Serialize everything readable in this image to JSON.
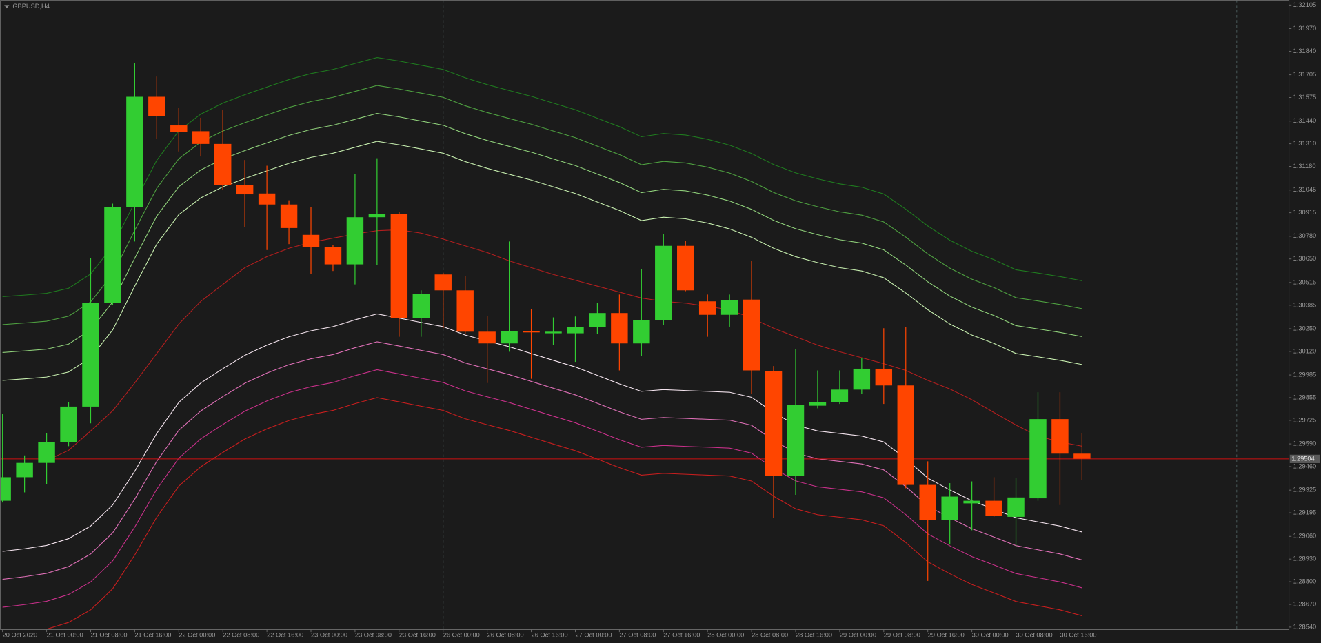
{
  "chart_data": {
    "type": "candlestick",
    "title": "GBPUSD,H4",
    "categories": [
      "20 Oct 2020",
      null,
      "21 Oct 00:00",
      null,
      "21 Oct 08:00",
      null,
      "21 Oct 16:00",
      null,
      "22 Oct 00:00",
      null,
      "22 Oct 08:00",
      null,
      "22 Oct 16:00",
      null,
      "23 Oct 00:00",
      null,
      "23 Oct 08:00",
      null,
      "23 Oct 16:00",
      null,
      "26 Oct 00:00",
      null,
      "26 Oct 08:00",
      null,
      "26 Oct 16:00",
      null,
      "27 Oct 00:00",
      null,
      "27 Oct 08:00",
      null,
      "27 Oct 16:00",
      null,
      "28 Oct 00:00",
      null,
      "28 Oct 08:00",
      null,
      "28 Oct 16:00",
      null,
      "29 Oct 00:00",
      null,
      "29 Oct 08:00",
      null,
      "29 Oct 16:00",
      null,
      "30 Oct 00:00",
      null,
      "30 Oct 08:00",
      null,
      "30 Oct 16:00",
      null
    ],
    "open": [
      1.29264,
      1.29399,
      1.29481,
      1.29601,
      1.29804,
      1.30397,
      1.30947,
      1.31579,
      1.31415,
      1.31382,
      1.31309,
      1.31073,
      1.31025,
      1.30962,
      1.30788,
      1.30716,
      1.30619,
      1.30889,
      1.30909,
      1.30311,
      1.30561,
      1.3047,
      1.30233,
      1.30166,
      1.30238,
      1.30224,
      1.30224,
      1.30258,
      1.3034,
      1.30166,
      1.30301,
      1.30725,
      1.30407,
      1.3033,
      1.30417,
      1.30007,
      1.29408,
      1.29809,
      1.29828,
      1.29901,
      1.30021,
      1.29925,
      1.29355,
      1.29153,
      1.29249,
      1.29264,
      1.29172,
      1.29278,
      1.29732,
      1.29534
    ],
    "high": [
      1.29761,
      1.29524,
      1.2965,
      1.29828,
      1.30653,
      1.30967,
      1.31772,
      1.31695,
      1.31517,
      1.31459,
      1.31502,
      1.31217,
      1.31184,
      1.30986,
      1.30947,
      1.3073,
      1.31135,
      1.31227,
      1.30918,
      1.3047,
      1.30571,
      1.30552,
      1.30325,
      1.3075,
      1.30364,
      1.30315,
      1.3032,
      1.30397,
      1.30446,
      1.3059,
      1.30793,
      1.30754,
      1.30446,
      1.30446,
      1.30639,
      1.30036,
      1.30132,
      1.30011,
      1.30011,
      1.30084,
      1.30253,
      1.30262,
      1.2949,
      1.29365,
      1.29375,
      1.29399,
      1.29394,
      1.29886,
      1.29886,
      1.2965
    ],
    "low": [
      1.29254,
      1.29312,
      1.2936,
      1.29577,
      1.29708,
      1.30388,
      1.3075,
      1.31338,
      1.31266,
      1.31237,
      1.31044,
      1.30832,
      1.30701,
      1.30735,
      1.30566,
      1.30581,
      1.30504,
      1.30614,
      1.30204,
      1.30204,
      1.30253,
      1.30219,
      1.29939,
      1.30118,
      1.29963,
      1.30156,
      1.3006,
      1.30219,
      1.30011,
      1.30093,
      1.30272,
      1.30465,
      1.30204,
      1.30262,
      1.29876,
      1.29167,
      1.29298,
      1.29794,
      1.29819,
      1.29876,
      1.29819,
      1.29336,
      1.28805,
      1.29013,
      1.29095,
      1.29172,
      1.28998,
      1.29264,
      1.2924,
      1.29384
    ],
    "close": [
      1.29399,
      1.29481,
      1.29601,
      1.29804,
      1.30397,
      1.30947,
      1.31579,
      1.31468,
      1.31377,
      1.31309,
      1.31073,
      1.3102,
      1.30962,
      1.30827,
      1.30716,
      1.30619,
      1.30889,
      1.30909,
      1.30311,
      1.3045,
      1.3047,
      1.30233,
      1.30166,
      1.30238,
      1.30229,
      1.30233,
      1.30258,
      1.3034,
      1.30166,
      1.30301,
      1.30725,
      1.3047,
      1.3033,
      1.30412,
      1.30011,
      1.29408,
      1.29814,
      1.29828,
      1.29901,
      1.30021,
      1.29925,
      1.29355,
      1.29153,
      1.29288,
      1.29264,
      1.29177,
      1.29283,
      1.29732,
      1.29534,
      1.29505
    ],
    "up_color": "#32cd32",
    "down_color": "#ff4500",
    "lines": [
      {
        "color": "#c8f0b0",
        "values": [
          1.29954,
          1.29963,
          1.29973,
          1.30002,
          1.30084,
          1.30243,
          1.30494,
          1.30735,
          1.30904,
          1.31,
          1.31063,
          1.31111,
          1.31155,
          1.31198,
          1.31232,
          1.31256,
          1.3129,
          1.31324,
          1.31304,
          1.3128,
          1.31256,
          1.31208,
          1.31169,
          1.31135,
          1.31102,
          1.31063,
          1.31025,
          1.30976,
          1.30928,
          1.3087,
          1.30889,
          1.3088,
          1.30856,
          1.30822,
          1.30774,
          1.30711,
          1.30663,
          1.30629,
          1.306,
          1.30581,
          1.30542,
          1.30455,
          1.30359,
          1.30277,
          1.30214,
          1.30166,
          1.30108,
          1.30089,
          1.30069,
          1.30045
        ]
      },
      {
        "color": "#8fd07a",
        "values": [
          1.30114,
          1.30123,
          1.30133,
          1.30162,
          1.30244,
          1.30403,
          1.30654,
          1.30895,
          1.31064,
          1.3116,
          1.31223,
          1.31271,
          1.31315,
          1.31358,
          1.31392,
          1.31416,
          1.3145,
          1.31484,
          1.31464,
          1.3144,
          1.31416,
          1.31368,
          1.31329,
          1.31295,
          1.31262,
          1.31223,
          1.31185,
          1.31136,
          1.31088,
          1.3103,
          1.31049,
          1.3104,
          1.31016,
          1.30982,
          1.30934,
          1.30871,
          1.30823,
          1.30789,
          1.3076,
          1.30741,
          1.30702,
          1.30615,
          1.30519,
          1.30437,
          1.30374,
          1.30326,
          1.30268,
          1.30249,
          1.30229,
          1.30205
        ]
      },
      {
        "color": "#4ea040",
        "values": [
          1.30274,
          1.30283,
          1.30293,
          1.30322,
          1.30404,
          1.30563,
          1.30814,
          1.31055,
          1.31224,
          1.3132,
          1.31383,
          1.31431,
          1.31475,
          1.31518,
          1.31552,
          1.31576,
          1.3161,
          1.31644,
          1.31624,
          1.316,
          1.31576,
          1.31528,
          1.31489,
          1.31455,
          1.31422,
          1.31383,
          1.31345,
          1.31296,
          1.31248,
          1.3119,
          1.31209,
          1.312,
          1.31176,
          1.31142,
          1.31094,
          1.31031,
          1.30983,
          1.30949,
          1.3092,
          1.30901,
          1.30862,
          1.30775,
          1.30679,
          1.30597,
          1.30534,
          1.30486,
          1.30428,
          1.30409,
          1.30389,
          1.30365
        ]
      },
      {
        "color": "#1f7a1f",
        "values": [
          1.30434,
          1.30443,
          1.30453,
          1.30482,
          1.30564,
          1.30723,
          1.30974,
          1.31215,
          1.31384,
          1.3148,
          1.31543,
          1.31591,
          1.31635,
          1.31678,
          1.31712,
          1.31736,
          1.3177,
          1.31804,
          1.31784,
          1.3176,
          1.31736,
          1.31688,
          1.31649,
          1.31615,
          1.31582,
          1.31543,
          1.31505,
          1.31456,
          1.31408,
          1.3135,
          1.31369,
          1.3136,
          1.31336,
          1.31302,
          1.31254,
          1.31191,
          1.31143,
          1.31109,
          1.3108,
          1.31061,
          1.31022,
          1.30935,
          1.30839,
          1.30757,
          1.30694,
          1.30646,
          1.30588,
          1.30569,
          1.30549,
          1.30525
        ]
      },
      {
        "color": "#f4e4ee",
        "values": [
          1.28974,
          1.28989,
          1.29008,
          1.29047,
          1.29119,
          1.2924,
          1.29433,
          1.2965,
          1.29828,
          1.29939,
          1.30021,
          1.30098,
          1.30156,
          1.30204,
          1.30238,
          1.30262,
          1.30301,
          1.30335,
          1.30311,
          1.30286,
          1.30262,
          1.30214,
          1.3018,
          1.30147,
          1.30108,
          1.30069,
          1.30031,
          1.29983,
          1.29934,
          1.29891,
          1.29901,
          1.29896,
          1.29891,
          1.29886,
          1.29857,
          1.2977,
          1.29698,
          1.29664,
          1.2965,
          1.29635,
          1.29601,
          1.29505,
          1.29394,
          1.29326,
          1.29264,
          1.29216,
          1.29167,
          1.29143,
          1.29119,
          1.29085
        ]
      },
      {
        "color": "#e070b8",
        "values": [
          1.28814,
          1.28829,
          1.28848,
          1.28887,
          1.28959,
          1.2908,
          1.29273,
          1.2949,
          1.29668,
          1.29779,
          1.29861,
          1.29938,
          1.29996,
          1.30044,
          1.30078,
          1.30102,
          1.30141,
          1.30175,
          1.30151,
          1.30126,
          1.30102,
          1.30054,
          1.3002,
          1.29987,
          1.29948,
          1.29909,
          1.29871,
          1.29823,
          1.29774,
          1.29731,
          1.29741,
          1.29736,
          1.29731,
          1.29726,
          1.29697,
          1.2961,
          1.29538,
          1.29504,
          1.2949,
          1.29475,
          1.29441,
          1.29345,
          1.29234,
          1.29166,
          1.29104,
          1.29056,
          1.29007,
          1.28983,
          1.28959,
          1.28925
        ]
      },
      {
        "color": "#c8308a",
        "values": [
          1.28654,
          1.28669,
          1.28688,
          1.28727,
          1.28799,
          1.2892,
          1.29113,
          1.2933,
          1.29508,
          1.29619,
          1.29701,
          1.29778,
          1.29836,
          1.29884,
          1.29918,
          1.29942,
          1.29981,
          1.30015,
          1.29991,
          1.29966,
          1.29942,
          1.29894,
          1.2986,
          1.29827,
          1.29788,
          1.29749,
          1.29711,
          1.29663,
          1.29614,
          1.29571,
          1.29581,
          1.29576,
          1.29571,
          1.29566,
          1.29537,
          1.2945,
          1.29378,
          1.29344,
          1.2933,
          1.29315,
          1.29281,
          1.29185,
          1.29074,
          1.29006,
          1.28944,
          1.28896,
          1.28847,
          1.28823,
          1.28799,
          1.28765
        ]
      },
      {
        "color": "#c81e1e",
        "values": [
          1.28494,
          1.28509,
          1.28528,
          1.28567,
          1.28639,
          1.2876,
          1.28953,
          1.2917,
          1.29348,
          1.29459,
          1.29541,
          1.29618,
          1.29676,
          1.29724,
          1.29758,
          1.29782,
          1.29821,
          1.29855,
          1.29831,
          1.29806,
          1.29782,
          1.29734,
          1.297,
          1.29667,
          1.29628,
          1.29589,
          1.29551,
          1.29503,
          1.29454,
          1.29411,
          1.29421,
          1.29416,
          1.29411,
          1.29406,
          1.29377,
          1.2929,
          1.29218,
          1.29184,
          1.2917,
          1.29155,
          1.29121,
          1.29025,
          1.28914,
          1.28846,
          1.28784,
          1.28736,
          1.28687,
          1.28663,
          1.28639,
          1.28605
        ]
      },
      {
        "color": "#b41e1e",
        "values": [
          null,
          null,
          1.29495,
          1.29553,
          1.29664,
          1.2978,
          1.29939,
          1.30108,
          1.30277,
          1.30407,
          1.30504,
          1.306,
          1.30663,
          1.30711,
          1.30745,
          1.30769,
          1.30793,
          1.30812,
          1.30817,
          1.30798,
          1.30764,
          1.30725,
          1.30687,
          1.30639,
          1.306,
          1.30561,
          1.30528,
          1.30494,
          1.3046,
          1.30426,
          1.30407,
          1.30397,
          1.30378,
          1.30359,
          1.30311,
          1.30253,
          1.30204,
          1.30156,
          1.30118,
          1.30084,
          1.3005,
          1.30011,
          1.29954,
          1.29905,
          1.29843,
          1.2977,
          1.29698,
          1.29635,
          1.29601,
          1.29577
        ]
      }
    ],
    "bid": 1.29504,
    "bid_color": "#d01010",
    "ylim": [
      1.28526,
      1.32134
    ],
    "yticks": [
      1.32105,
      {
        "value": 1.3197,
        "label": "1.31970"
      },
      {
        "value": 1.3184,
        "label": "1.31840"
      },
      1.31705,
      1.31575,
      {
        "value": 1.3144,
        "label": "1.31440"
      },
      {
        "value": 1.3131,
        "label": "1.31310"
      },
      {
        "value": 1.3118,
        "label": "1.31180"
      },
      1.31045,
      1.30915,
      {
        "value": 1.3078,
        "label": "1.30780"
      },
      {
        "value": 1.3065,
        "label": "1.30650"
      },
      1.30515,
      1.30385,
      {
        "value": 1.3025,
        "label": "1.30250"
      },
      {
        "value": 1.3012,
        "label": "1.30120"
      },
      1.29985,
      1.29855,
      1.29725,
      {
        "value": 1.2959,
        "label": "1.29590"
      },
      {
        "value": 1.2946,
        "label": "1.29460"
      },
      1.29325,
      1.29195,
      {
        "value": 1.2906,
        "label": "1.29060"
      },
      {
        "value": 1.2893,
        "label": "1.28930"
      },
      {
        "value": 1.288,
        "label": "1.28800"
      },
      {
        "value": 1.2867,
        "label": "1.28670"
      },
      {
        "value": 1.2854,
        "label": "1.28540"
      }
    ]
  }
}
